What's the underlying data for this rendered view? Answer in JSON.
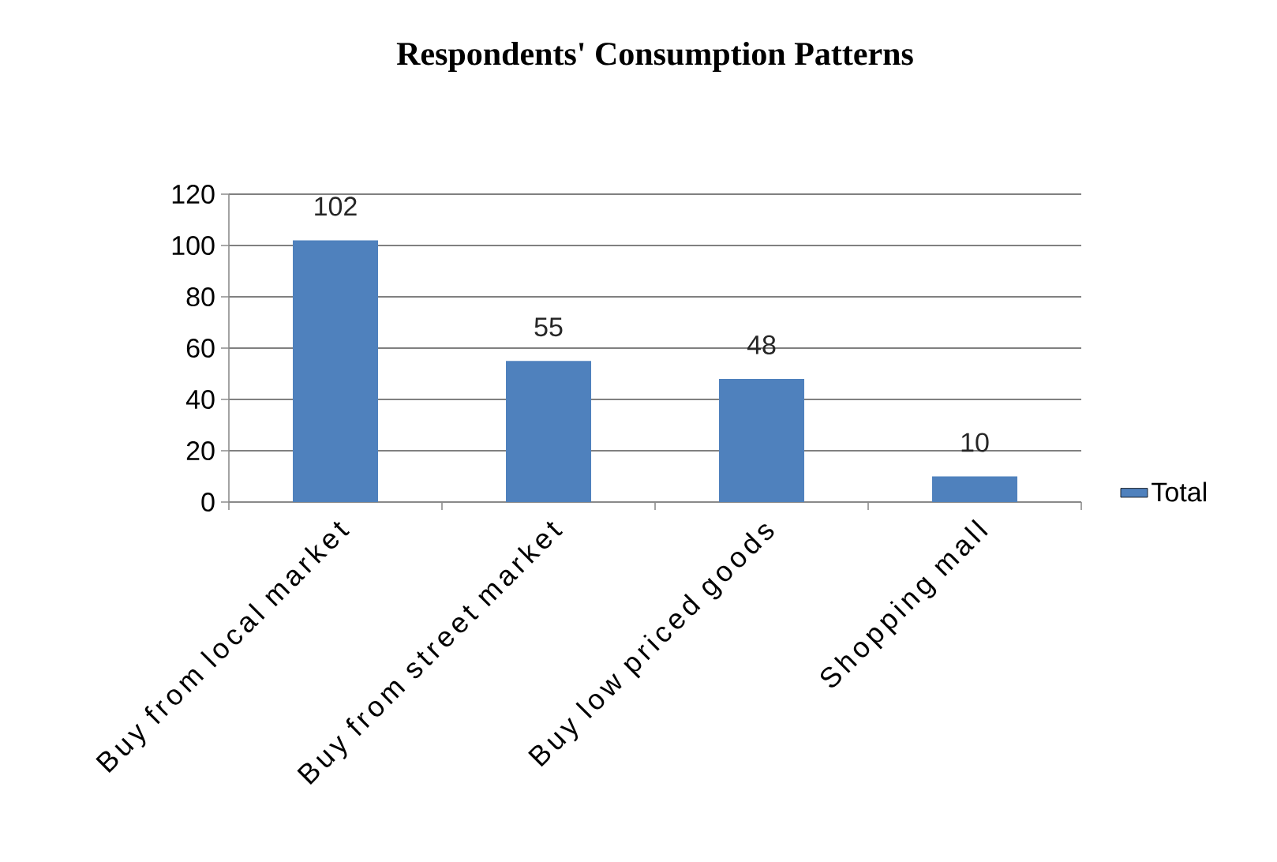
{
  "chart_data": {
    "type": "bar",
    "title": "Respondents' Consumption Patterns",
    "categories": [
      "Buy from local market",
      "Buy from street market",
      "Buy low priced goods",
      "Shopping mall"
    ],
    "series": [
      {
        "name": "Total",
        "color": "#4f81bd",
        "values": [
          102,
          55,
          48,
          10
        ]
      }
    ],
    "ylim": [
      0,
      120
    ],
    "yticks": [
      0,
      20,
      40,
      60,
      80,
      100,
      120
    ],
    "grid": "y",
    "legend": "right",
    "data_labels": true
  }
}
